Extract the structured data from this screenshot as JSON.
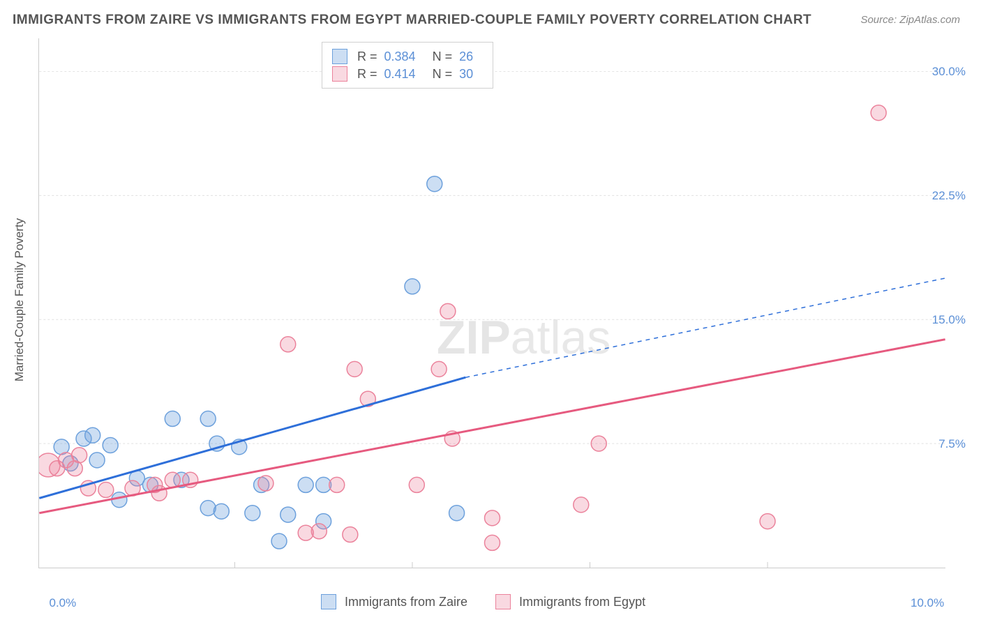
{
  "title": "IMMIGRANTS FROM ZAIRE VS IMMIGRANTS FROM EGYPT MARRIED-COUPLE FAMILY POVERTY CORRELATION CHART",
  "source": "Source: ZipAtlas.com",
  "y_axis_title": "Married-Couple Family Poverty",
  "watermark_a": "ZIP",
  "watermark_b": "atlas",
  "chart": {
    "type": "scatter",
    "background_color": "#ffffff",
    "grid_color": "#e0e0e0",
    "grid_dash": "3,3",
    "xlim": [
      -0.2,
      10.0
    ],
    "ylim": [
      0,
      32
    ],
    "x_ticks": [
      {
        "v": 0.0,
        "label": "0.0%"
      },
      {
        "v": 10.0,
        "label": "10.0%"
      }
    ],
    "x_minor_ticks": [
      2.0,
      4.0,
      6.0,
      8.0
    ],
    "y_ticks": [
      {
        "v": 7.5,
        "label": "7.5%"
      },
      {
        "v": 15.0,
        "label": "15.0%"
      },
      {
        "v": 22.5,
        "label": "22.5%"
      },
      {
        "v": 30.0,
        "label": "30.0%"
      }
    ],
    "series": [
      {
        "name": "Immigrants from Zaire",
        "legend_label": "Immigrants from Zaire",
        "marker_fill": "rgba(108,160,220,0.35)",
        "marker_stroke": "#6ca0dc",
        "marker_r": 11,
        "line_color": "#2e6fd9",
        "line_width": 3,
        "stats": {
          "R_label": "R =",
          "R": "0.384",
          "N_label": "N =",
          "N": "26"
        },
        "reg_solid": {
          "x1": -0.2,
          "y1": 4.2,
          "x2": 4.6,
          "y2": 11.5
        },
        "reg_dash": {
          "x1": 4.6,
          "y1": 11.5,
          "x2": 10.0,
          "y2": 17.5
        },
        "points": [
          {
            "x": 0.05,
            "y": 7.3
          },
          {
            "x": 0.15,
            "y": 6.3
          },
          {
            "x": 0.3,
            "y": 7.8
          },
          {
            "x": 0.4,
            "y": 8.0
          },
          {
            "x": 0.45,
            "y": 6.5
          },
          {
            "x": 0.6,
            "y": 7.4
          },
          {
            "x": 0.7,
            "y": 4.1
          },
          {
            "x": 0.9,
            "y": 5.4
          },
          {
            "x": 1.05,
            "y": 5.0
          },
          {
            "x": 1.3,
            "y": 9.0
          },
          {
            "x": 1.4,
            "y": 5.3
          },
          {
            "x": 1.7,
            "y": 9.0
          },
          {
            "x": 1.7,
            "y": 3.6
          },
          {
            "x": 1.8,
            "y": 7.5
          },
          {
            "x": 1.85,
            "y": 3.4
          },
          {
            "x": 2.05,
            "y": 7.3
          },
          {
            "x": 2.2,
            "y": 3.3
          },
          {
            "x": 2.3,
            "y": 5.0
          },
          {
            "x": 2.5,
            "y": 1.6
          },
          {
            "x": 2.6,
            "y": 3.2
          },
          {
            "x": 2.8,
            "y": 5.0
          },
          {
            "x": 3.0,
            "y": 2.8
          },
          {
            "x": 3.0,
            "y": 5.0
          },
          {
            "x": 4.0,
            "y": 17.0
          },
          {
            "x": 4.25,
            "y": 23.2
          },
          {
            "x": 4.5,
            "y": 3.3
          }
        ]
      },
      {
        "name": "Immigrants from Egypt",
        "legend_label": "Immigrants from Egypt",
        "marker_fill": "rgba(235,130,155,0.30)",
        "marker_stroke": "#eb829b",
        "marker_r": 11,
        "line_color": "#e65a7f",
        "line_width": 3,
        "stats": {
          "R_label": "R =",
          "R": "0.414",
          "N_label": "N =",
          "N": "30"
        },
        "reg_solid": {
          "x1": -0.2,
          "y1": 3.3,
          "x2": 10.0,
          "y2": 13.8
        },
        "reg_dash": null,
        "points": [
          {
            "x": -0.1,
            "y": 6.2,
            "r": 17
          },
          {
            "x": 0.0,
            "y": 6.0
          },
          {
            "x": 0.1,
            "y": 6.5
          },
          {
            "x": 0.2,
            "y": 6.0
          },
          {
            "x": 0.25,
            "y": 6.8
          },
          {
            "x": 0.35,
            "y": 4.8
          },
          {
            "x": 0.55,
            "y": 4.7
          },
          {
            "x": 0.85,
            "y": 4.8
          },
          {
            "x": 1.1,
            "y": 5.0
          },
          {
            "x": 1.15,
            "y": 4.5
          },
          {
            "x": 1.3,
            "y": 5.3
          },
          {
            "x": 1.5,
            "y": 5.3
          },
          {
            "x": 2.35,
            "y": 5.1
          },
          {
            "x": 2.6,
            "y": 13.5
          },
          {
            "x": 2.8,
            "y": 2.1
          },
          {
            "x": 2.95,
            "y": 2.2
          },
          {
            "x": 3.15,
            "y": 5.0
          },
          {
            "x": 3.3,
            "y": 2.0
          },
          {
            "x": 3.35,
            "y": 12.0
          },
          {
            "x": 3.5,
            "y": 10.2
          },
          {
            "x": 4.05,
            "y": 5.0
          },
          {
            "x": 4.3,
            "y": 12.0
          },
          {
            "x": 4.4,
            "y": 15.5
          },
          {
            "x": 4.45,
            "y": 7.8
          },
          {
            "x": 4.9,
            "y": 3.0
          },
          {
            "x": 4.9,
            "y": 1.5
          },
          {
            "x": 5.9,
            "y": 3.8
          },
          {
            "x": 6.1,
            "y": 7.5
          },
          {
            "x": 8.0,
            "y": 2.8
          },
          {
            "x": 9.25,
            "y": 27.5
          }
        ]
      }
    ]
  }
}
